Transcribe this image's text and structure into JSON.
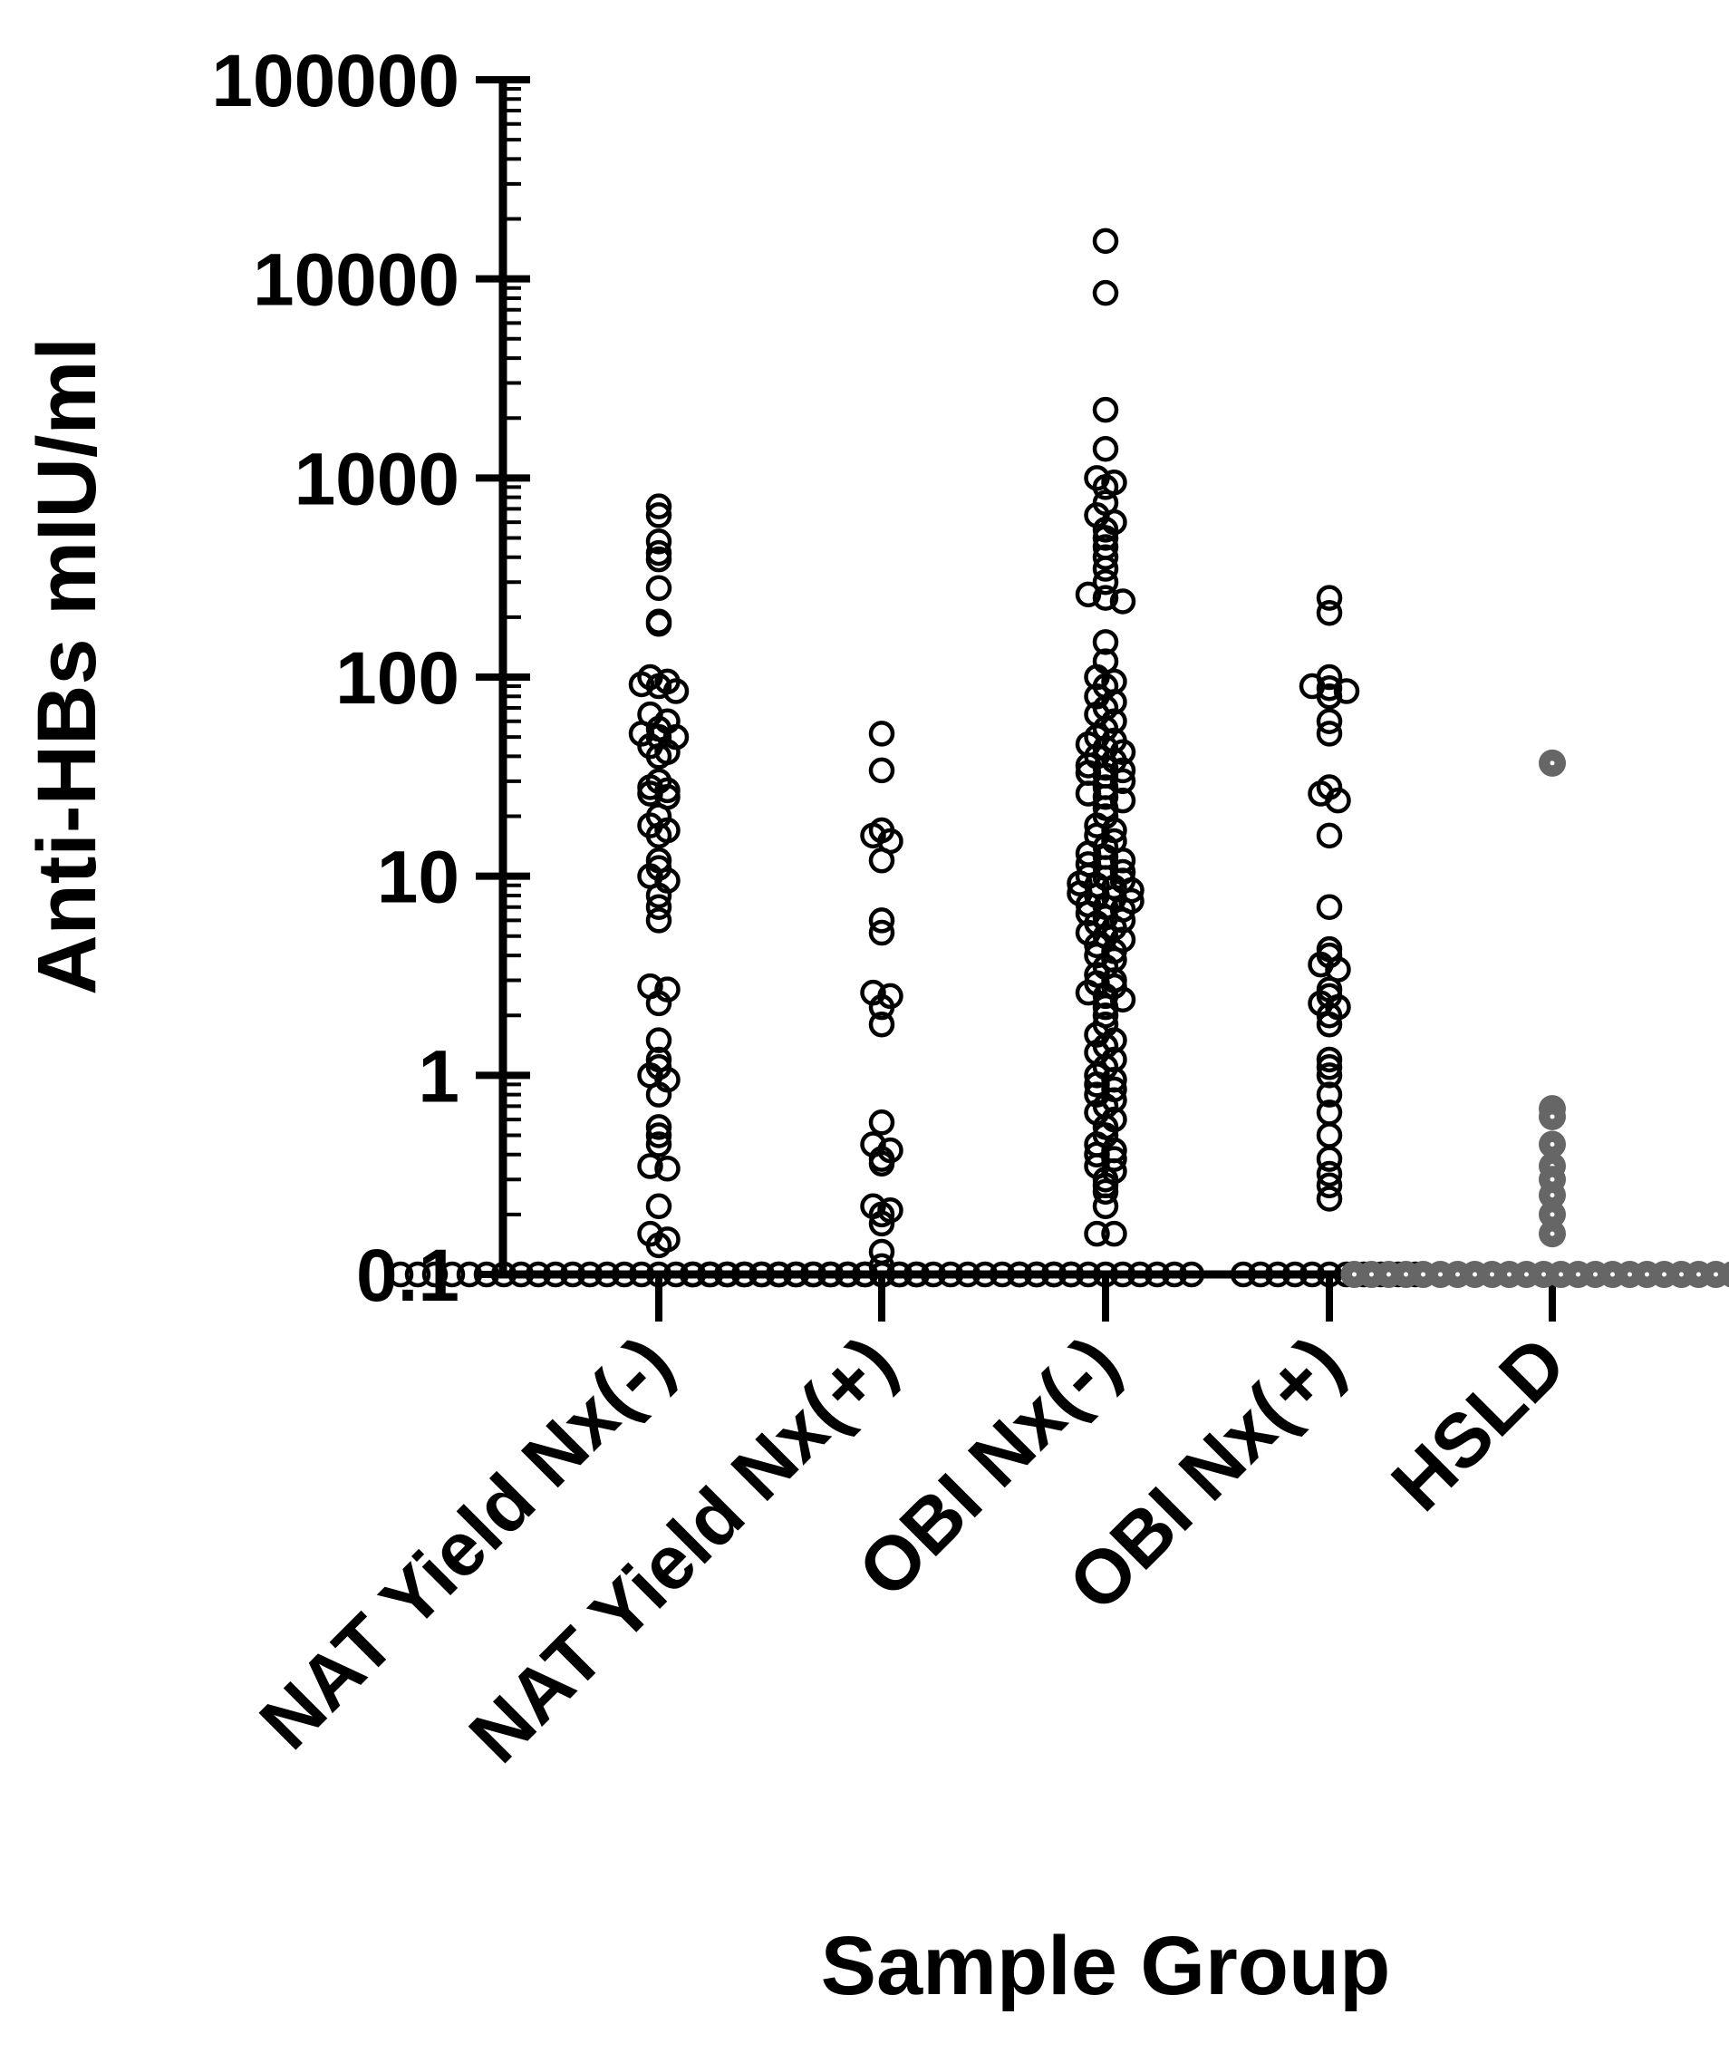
{
  "chart_data": {
    "type": "scatter",
    "subtype": "dot-plot",
    "title": "",
    "xlabel": "Sample  Group",
    "ylabel": "Anti-HBs mIU/ml",
    "yscale": "log",
    "ylim": [
      0.1,
      100000
    ],
    "yticks": [
      {
        "value": 0.1,
        "label": "0.1"
      },
      {
        "value": 1,
        "label": "1"
      },
      {
        "value": 10,
        "label": "10"
      },
      {
        "value": 100,
        "label": "100"
      },
      {
        "value": 1000,
        "label": "1000"
      },
      {
        "value": 10000,
        "label": "10000"
      },
      {
        "value": 100000,
        "label": "100000"
      }
    ],
    "grid": false,
    "legend": "none",
    "categories": [
      "NAT Yield Nx(-)",
      "NAT Yield Nx(+)",
      "OBI Nx(-)",
      "OBI Nx(+)",
      "HSLD"
    ],
    "colors": {
      "default": "#000000",
      "hsld": "#666666",
      "background": "#ffffff"
    },
    "series": [
      {
        "category": "NAT Yield Nx(-)",
        "values": [
          720,
          650,
          480,
          420,
          390,
          280,
          190,
          185,
          100,
          95,
          92,
          90,
          85,
          65,
          60,
          55,
          52,
          50,
          50,
          45,
          42,
          40,
          30,
          28,
          27,
          26,
          25,
          20,
          18,
          17,
          16,
          12,
          11,
          10,
          9.5,
          8,
          7,
          6,
          2.8,
          2.7,
          2.3,
          1.5,
          1.2,
          1.1,
          1.0,
          0.95,
          0.8,
          0.55,
          0.5,
          0.45,
          0.35,
          0.34,
          0.22,
          0.16,
          0.15,
          0.14,
          0.1,
          0.1,
          0.1,
          0.1,
          0.1,
          0.1,
          0.1,
          0.1,
          0.1,
          0.1,
          0.1,
          0.1,
          0.1,
          0.1,
          0.1,
          0.1,
          0.1,
          0.1,
          0.1,
          0.1,
          0.1,
          0.1,
          0.1,
          0.1,
          0.1,
          0.1,
          0.1,
          0.1,
          0.1,
          0.1,
          0.1
        ]
      },
      {
        "category": "NAT Yield Nx(+)",
        "values": [
          52,
          34,
          17,
          16,
          15,
          12,
          6,
          5.2,
          2.6,
          2.5,
          2.2,
          1.8,
          0.58,
          0.45,
          0.42,
          0.38,
          0.36,
          0.22,
          0.21,
          0.2,
          0.18,
          0.13,
          0.11,
          0.1,
          0.1,
          0.1,
          0.1,
          0.1,
          0.1,
          0.1,
          0.1,
          0.1,
          0.1,
          0.1,
          0.1,
          0.1,
          0.1,
          0.1,
          0.1,
          0.1,
          0.1,
          0.1,
          0.1,
          0.1,
          0.1,
          0.1
        ]
      },
      {
        "category": "OBI Nx(-)",
        "values": [
          15500,
          8500,
          2200,
          1400,
          1000,
          950,
          900,
          750,
          650,
          600,
          550,
          500,
          450,
          400,
          350,
          300,
          260,
          250,
          240,
          150,
          120,
          100,
          95,
          90,
          80,
          75,
          70,
          65,
          60,
          55,
          50,
          48,
          46,
          44,
          42,
          40,
          38,
          36,
          35,
          34,
          33,
          32,
          30,
          28,
          26,
          25,
          24,
          22,
          20,
          18,
          17,
          16,
          15,
          14,
          13,
          12.5,
          12,
          11.5,
          11,
          10.5,
          10,
          9.8,
          9.5,
          9.2,
          9,
          8.8,
          8.5,
          8.2,
          8,
          7.8,
          7.5,
          7.2,
          7,
          6.8,
          6.5,
          6.2,
          6,
          5.8,
          5.5,
          5.2,
          5,
          4.8,
          4.5,
          4.2,
          4,
          3.8,
          3.5,
          3.2,
          3,
          2.9,
          2.8,
          2.6,
          2.5,
          2.4,
          2.2,
          2,
          1.8,
          1.6,
          1.5,
          1.4,
          1.3,
          1.2,
          1.1,
          1,
          0.95,
          0.9,
          0.85,
          0.8,
          0.75,
          0.7,
          0.65,
          0.6,
          0.55,
          0.5,
          0.45,
          0.42,
          0.4,
          0.38,
          0.35,
          0.33,
          0.3,
          0.28,
          0.26,
          0.22,
          0.16,
          0.16,
          0.1,
          0.1,
          0.1,
          0.1,
          0.1,
          0.1,
          0.1,
          0.1,
          0.1,
          0.1,
          0.1
        ]
      },
      {
        "category": "OBI Nx(+)",
        "values": [
          250,
          210,
          100,
          90,
          88,
          85,
          80,
          60,
          52,
          28,
          26,
          24,
          16,
          7,
          4.3,
          4.0,
          3.6,
          3.4,
          2.7,
          2.5,
          2.3,
          2.2,
          2.0,
          1.8,
          1.2,
          1.1,
          1.0,
          0.8,
          0.65,
          0.5,
          0.38,
          0.32,
          0.28,
          0.24,
          0.1,
          0.1,
          0.1,
          0.1,
          0.1,
          0.1,
          0.1,
          0.1,
          0.1,
          0.1,
          0.1
        ]
      },
      {
        "category": "HSLD",
        "values": [
          37,
          0.68,
          0.62,
          0.45,
          0.35,
          0.3,
          0.25,
          0.2,
          0.16,
          0.1,
          0.1,
          0.1,
          0.1,
          0.1,
          0.1,
          0.1,
          0.1,
          0.1,
          0.1,
          0.1,
          0.1,
          0.1,
          0.1,
          0.1,
          0.1,
          0.1,
          0.1,
          0.1,
          0.1,
          0.1,
          0.1,
          0.1,
          0.1
        ]
      }
    ]
  }
}
